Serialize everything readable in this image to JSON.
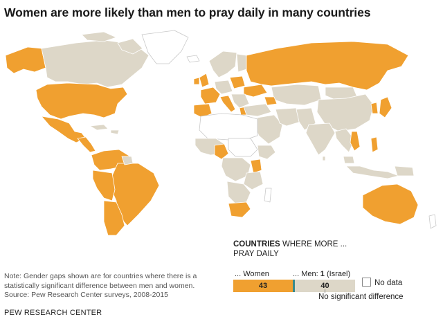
{
  "title": "Women are more likely than men to pray daily in many countries",
  "legend": {
    "heading_bold": "COUNTRIES",
    "heading_rest": "WHERE MORE ...",
    "heading_sub": "PRAY DAILY",
    "women_label": "... Women",
    "men_label_prefix": "... Men:",
    "men_count": "1",
    "men_label_suffix": "(Israel)",
    "women_count": "43",
    "no_difference_count": "40",
    "no_difference_label": "No significant difference",
    "no_data_label": "No data"
  },
  "colors": {
    "women": "#f0a030",
    "men": "#3a8a8c",
    "no_difference": "#ddd7c8",
    "no_data": "#ffffff"
  },
  "note": {
    "note_text": "Note: Gender gaps shown are for countries where there is a statistically significant difference between men and women.",
    "source_text": "Source: Pew Research Center surveys, 2008-2015"
  },
  "footer": "PEW RESEARCH CENTER",
  "chart_data": {
    "type": "map",
    "categories": [
      "Women",
      "Men",
      "No significant difference"
    ],
    "values": [
      43,
      1,
      40
    ]
  }
}
